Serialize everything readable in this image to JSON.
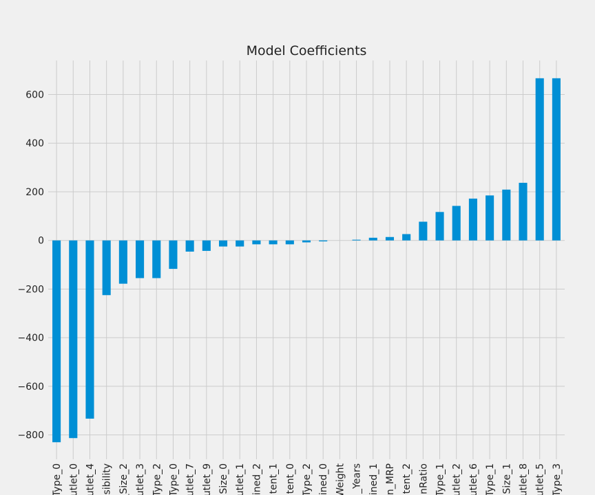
{
  "chart_data": {
    "type": "bar",
    "title": "Model Coefficients",
    "xlabel": "",
    "ylabel": "",
    "categories": [
      "Type_0",
      "utlet_0",
      "utlet_4",
      "sibility",
      "_Size_2",
      "utlet_3",
      "Type_2",
      "Type_0",
      "utlet_7",
      "utlet_9",
      "Size_0",
      "utlet_1",
      "ined_2",
      "tent_1",
      "tent_0",
      "Type_2",
      "ined_0",
      "Weight",
      "_Years",
      "ined_1",
      "n_MRP",
      "tent_2",
      "nRatio",
      "Type_1",
      "utlet_2",
      "utlet_6",
      "Type_1",
      "Size_1",
      "utlet_8",
      "utlet_5",
      "Type_3"
    ],
    "values": [
      -830,
      -813,
      -733,
      -225,
      -178,
      -155,
      -155,
      -117,
      -46,
      -43,
      -25,
      -25,
      -16,
      -16,
      -16,
      -8,
      -4,
      0,
      3,
      11,
      14,
      26,
      77,
      117,
      142,
      172,
      185,
      209,
      237,
      667,
      667
    ],
    "ylim": [
      -900,
      740
    ],
    "yticks": [
      -800,
      -600,
      -400,
      -200,
      0,
      200,
      400,
      600
    ],
    "grid": true,
    "legend": "none",
    "colors": {
      "bar": "#008fd5",
      "background": "#f0f0f0",
      "grid": "#cbcbcb",
      "text": "#222222"
    }
  }
}
